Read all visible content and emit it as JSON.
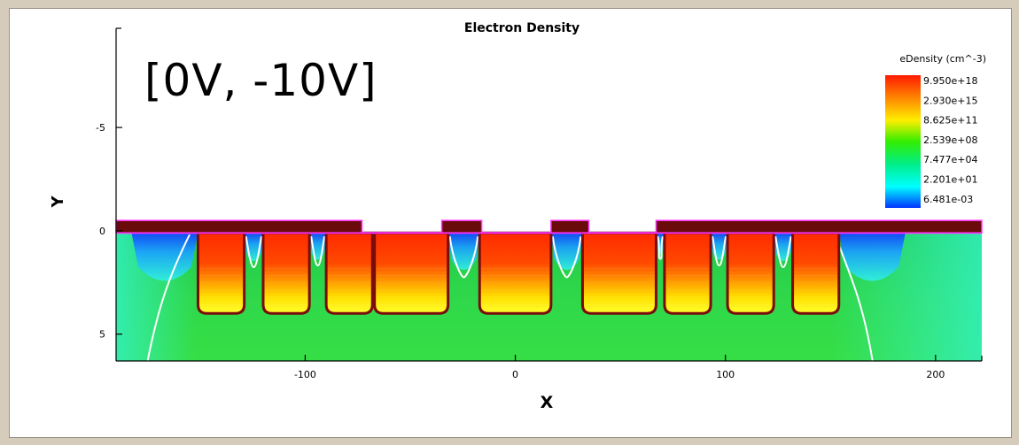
{
  "chart_data": {
    "type": "heatmap",
    "title": "Electron Density",
    "annotation": "[0V, -10V]",
    "xlabel": "X",
    "ylabel": "Y",
    "xlim": [
      -190,
      222
    ],
    "ylim": [
      6.3,
      -9.8
    ],
    "y_inverted": true,
    "x_ticks": [
      -100,
      0,
      100,
      200
    ],
    "y_ticks": [
      -5,
      0,
      5
    ],
    "colorbar": {
      "title": "eDensity (cm^-3)",
      "scale": "log",
      "labels": [
        "9.950e+18",
        "2.930e+15",
        "8.625e+11",
        "2.539e+08",
        "7.477e+04",
        "2.201e+01",
        "6.481e-03"
      ],
      "colors": [
        "#ff1a00",
        "#ff8c00",
        "#ffee00",
        "#33ee00",
        "#00ee88",
        "#00ffff",
        "#0033ff"
      ]
    },
    "oxide_layer": {
      "y_top": -0.5,
      "y_bottom": 0.1
    },
    "gates": [
      {
        "x1": -190,
        "x2": -73
      },
      {
        "x1": -35,
        "x2": -16
      },
      {
        "x1": 17,
        "x2": 35
      },
      {
        "x1": 67,
        "x2": 222
      }
    ],
    "wells": [
      {
        "x1": -151,
        "x2": -129
      },
      {
        "x1": -120,
        "x2": -98
      },
      {
        "x1": -90,
        "x2": -68
      },
      {
        "x1": -67,
        "x2": -32
      },
      {
        "x1": -17,
        "x2": 17
      },
      {
        "x1": 32,
        "x2": 67
      },
      {
        "x1": 71,
        "x2": 93
      },
      {
        "x1": 101,
        "x2": 123
      },
      {
        "x1": 132,
        "x2": 154
      }
    ],
    "well_depth": 4.0,
    "colors": {
      "background_field": "#27d64a",
      "gate": "#6b0a0a",
      "gate_outline": "#ff33ff",
      "contour": "#ffffff",
      "well_outline": "#7a0c0c"
    }
  }
}
